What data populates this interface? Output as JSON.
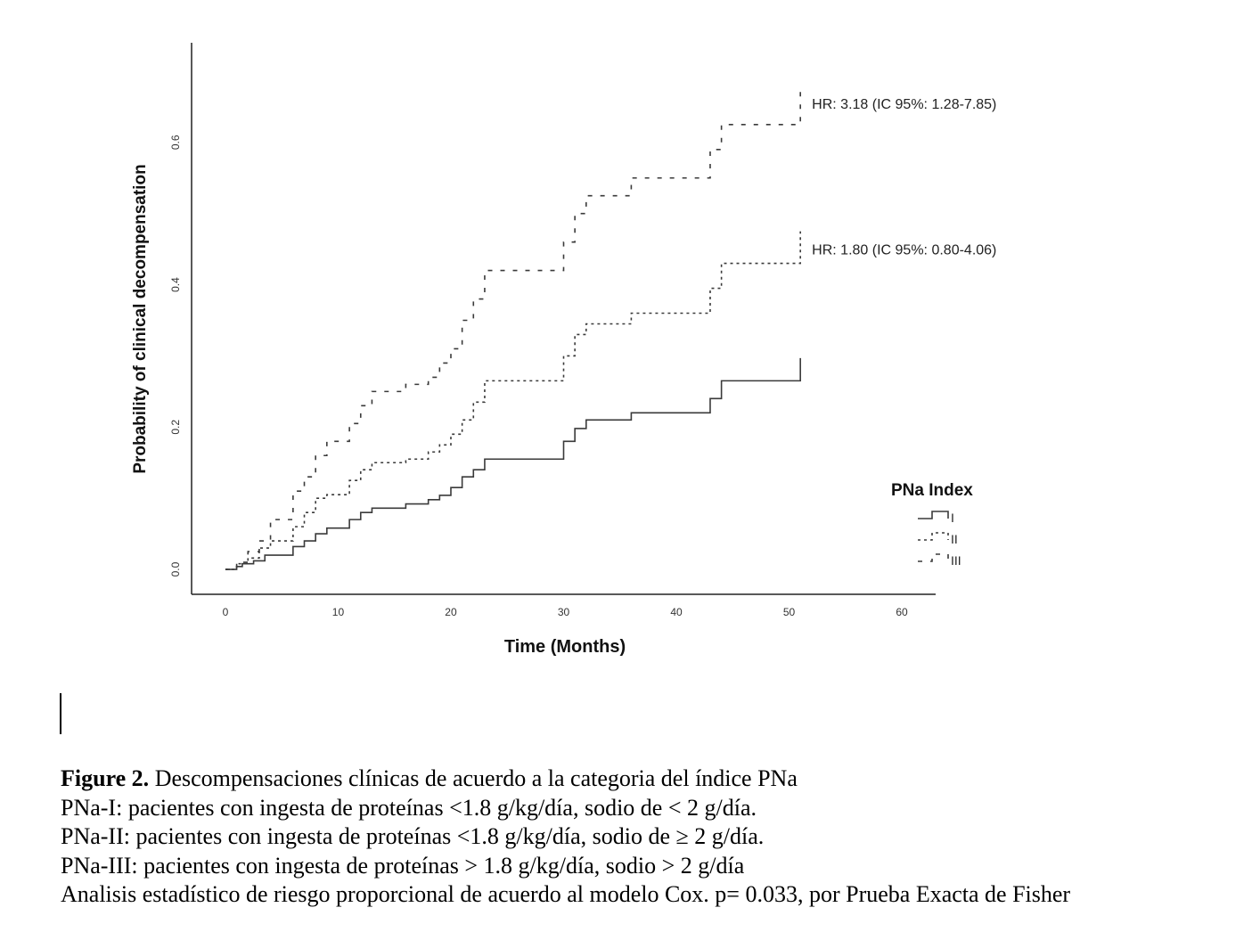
{
  "chart_data": {
    "type": "line",
    "subtype": "step",
    "xlabel": "Time (Months)",
    "ylabel": "Probability of clinical decompensation",
    "xlim": [
      -3,
      63
    ],
    "ylim": [
      -0.035,
      0.74
    ],
    "xticks": [
      0,
      10,
      20,
      30,
      40,
      50,
      60
    ],
    "yticks": [
      0.0,
      0.2,
      0.4,
      0.6
    ],
    "grid": false,
    "legend_title": "PNa Index",
    "legend_position": "right",
    "series": [
      {
        "name": "I",
        "line_style": "solid",
        "x": [
          0,
          1,
          1.5,
          2.5,
          3.5,
          6,
          7,
          8,
          9,
          11,
          12,
          13,
          16,
          18,
          19,
          20,
          21,
          22,
          23,
          30,
          31,
          32,
          36,
          43,
          44,
          51
        ],
        "y": [
          0,
          0.004,
          0.008,
          0.012,
          0.02,
          0.032,
          0.04,
          0.05,
          0.058,
          0.07,
          0.08,
          0.086,
          0.092,
          0.098,
          0.104,
          0.115,
          0.13,
          0.14,
          0.155,
          0.18,
          0.198,
          0.21,
          0.22,
          0.24,
          0.265,
          0.297
        ]
      },
      {
        "name": "II",
        "line_style": "dotted",
        "x": [
          0,
          1,
          2,
          3,
          4,
          6,
          7,
          8,
          9,
          11,
          12,
          13,
          16,
          18,
          19,
          20,
          21,
          22,
          23,
          30,
          31,
          32,
          36,
          43,
          44,
          51
        ],
        "y": [
          0,
          0.008,
          0.016,
          0.03,
          0.04,
          0.06,
          0.08,
          0.1,
          0.105,
          0.125,
          0.14,
          0.15,
          0.155,
          0.165,
          0.175,
          0.19,
          0.21,
          0.235,
          0.265,
          0.3,
          0.33,
          0.345,
          0.36,
          0.395,
          0.43,
          0.475
        ]
      },
      {
        "name": "III",
        "line_style": "dashed",
        "x": [
          0,
          1,
          2,
          3,
          4,
          6,
          7,
          8,
          9,
          11,
          12,
          13,
          16,
          18,
          19,
          20,
          21,
          22,
          23,
          30,
          31,
          32,
          36,
          43,
          44,
          51
        ],
        "y": [
          0,
          0.01,
          0.025,
          0.04,
          0.07,
          0.11,
          0.13,
          0.16,
          0.18,
          0.205,
          0.23,
          0.25,
          0.26,
          0.27,
          0.29,
          0.31,
          0.35,
          0.38,
          0.42,
          0.46,
          0.5,
          0.525,
          0.55,
          0.59,
          0.625,
          0.68
        ]
      }
    ],
    "annotations": [
      {
        "text": "HR: 3.18 (IC 95%: 1.28-7.85)",
        "series": "III"
      },
      {
        "text": "HR: 1.80 (IC 95%: 0.80-4.06)",
        "series": "II"
      }
    ]
  },
  "caption": {
    "figure_label": "Figure 2.",
    "title": " Descompensaciones clínicas de acuerdo a la categoria del índice PNa",
    "line1": "PNa-I: pacientes con ingesta de proteínas <1.8 g/kg/día, sodio de < 2 g/día.",
    "line2": "PNa-II: pacientes con ingesta de proteínas <1.8 g/kg/día, sodio de  ≥ 2 g/día.",
    "line3": "PNa-III: pacientes con ingesta de proteínas > 1.8 g/kg/día, sodio > 2 g/día",
    "line4": "Analisis estadístico de riesgo proporcional de acuerdo al modelo Cox. p= 0.033, por Prueba Exacta de Fisher"
  },
  "colors": {
    "line": "#3a3a3a",
    "axis": "#222222",
    "text": "#111111"
  }
}
